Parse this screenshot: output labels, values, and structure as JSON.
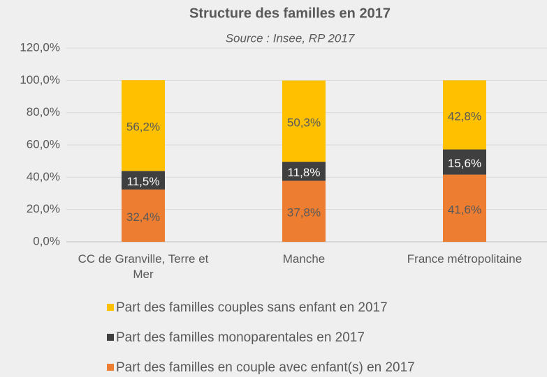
{
  "chart_data": {
    "type": "stacked_bar",
    "title": "Structure des familles en 2017",
    "subtitle": "Source : Insee, RP 2017",
    "categories": [
      "CC de Granville, Terre et Mer",
      "Manche",
      "France métropolitaine"
    ],
    "series": [
      {
        "name": "Part des familles en couple avec enfant(s) en 2017",
        "color": "#ed7d31",
        "label_color": "#595959",
        "values": [
          32.4,
          37.8,
          41.6
        ],
        "value_labels": [
          "32,4%",
          "37,8%",
          "41,6%"
        ]
      },
      {
        "name": "Part des familles monoparentales en 2017",
        "color": "#3f3f3f",
        "label_color": "#ffffff",
        "values": [
          11.5,
          11.8,
          15.6
        ],
        "value_labels": [
          "11,5%",
          "11,8%",
          "15,6%"
        ]
      },
      {
        "name": "Part des familles couples sans enfant en 2017",
        "color": "#ffc000",
        "label_color": "#595959",
        "values": [
          56.2,
          50.3,
          42.8
        ],
        "value_labels": [
          "56,2%",
          "50,3%",
          "42,8%"
        ]
      }
    ],
    "ylim": [
      0,
      120
    ],
    "yticks": [
      {
        "value": 0,
        "label": "0,0%"
      },
      {
        "value": 20,
        "label": "20,0%"
      },
      {
        "value": 40,
        "label": "40,0%"
      },
      {
        "value": 60,
        "label": "60,0%"
      },
      {
        "value": 80,
        "label": "80,0%"
      },
      {
        "value": 100,
        "label": "100,0%"
      },
      {
        "value": 120,
        "label": "120,0%"
      }
    ],
    "grid": true
  }
}
